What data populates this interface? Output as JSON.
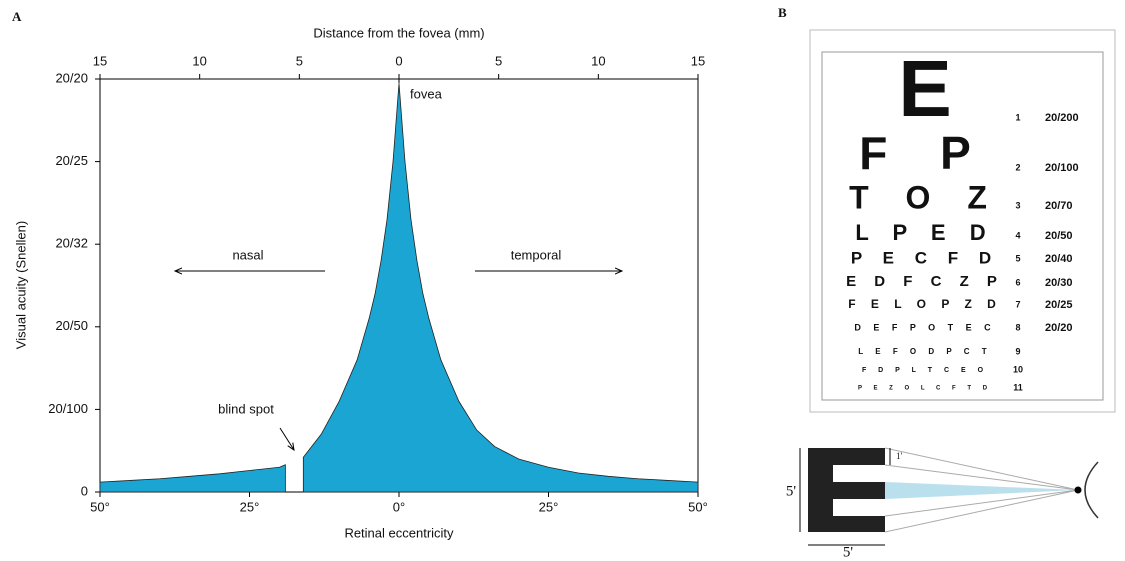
{
  "chart_data": {
    "type": "area",
    "panel_label": "A",
    "x_label": "Retinal eccentricity",
    "x2_label": "Distance from the fovea (mm)",
    "y_label": "Visual acuity (Snellen)",
    "color": "#1ba5d3",
    "x": [
      -50,
      -45,
      -40,
      -35,
      -30,
      -25,
      -20,
      -19,
      -17.5,
      -16,
      -13,
      -10,
      -7,
      -5,
      -4,
      -3,
      -2,
      -1,
      0,
      1,
      2,
      3,
      4,
      5,
      7,
      10,
      13,
      16,
      20,
      25,
      30,
      35,
      40,
      45,
      50
    ],
    "values": [
      0.12,
      0.14,
      0.16,
      0.19,
      0.22,
      0.26,
      0.3,
      0.33,
      null,
      0.42,
      0.7,
      1.1,
      1.6,
      2.1,
      2.4,
      2.8,
      3.3,
      4.0,
      4.95,
      4.0,
      3.3,
      2.8,
      2.4,
      2.1,
      1.6,
      1.1,
      0.75,
      0.55,
      0.4,
      0.3,
      0.23,
      0.19,
      0.16,
      0.14,
      0.12
    ],
    "xlim": [
      -50,
      50
    ],
    "xticks": [
      {
        "value": -50,
        "label": "50°"
      },
      {
        "value": -25,
        "label": "25°"
      },
      {
        "value": 0,
        "label": "0°"
      },
      {
        "value": 25,
        "label": "25°"
      },
      {
        "value": 50,
        "label": "50°"
      }
    ],
    "x2lim": [
      -15,
      15
    ],
    "x2ticks": [
      {
        "value": -15,
        "label": "15"
      },
      {
        "value": -10,
        "label": "10"
      },
      {
        "value": -5,
        "label": "5"
      },
      0,
      5,
      10,
      15
    ],
    "ylim": [
      0,
      5
    ],
    "yticks": [
      0,
      {
        "value": 1,
        "label": "20/100"
      },
      {
        "value": 2,
        "label": "20/50"
      },
      {
        "value": 3,
        "label": "20/32"
      },
      {
        "value": 4,
        "label": "20/25"
      },
      {
        "value": 5,
        "label": "20/20"
      }
    ],
    "annotations": [
      "fovea",
      "nasal",
      "temporal",
      "blind spot"
    ]
  },
  "snellen": {
    "panel_label": "B",
    "rows": [
      {
        "letters": "E",
        "number": "1",
        "acuity": "20/200"
      },
      {
        "letters": "F P",
        "number": "2",
        "acuity": "20/100"
      },
      {
        "letters": "T O Z",
        "number": "3",
        "acuity": "20/70"
      },
      {
        "letters": "L P E D",
        "number": "4",
        "acuity": "20/50"
      },
      {
        "letters": "P E C F D",
        "number": "5",
        "acuity": "20/40"
      },
      {
        "letters": "E D F C Z P",
        "number": "6",
        "acuity": "20/30"
      },
      {
        "letters": "F E L O P Z D",
        "number": "7",
        "acuity": "20/25"
      },
      {
        "letters": "D E F P O T E C",
        "number": "8",
        "acuity": "20/20"
      },
      {
        "letters": "L E F O D P C T",
        "number": "9"
      },
      {
        "letters": "F D P L T C E O",
        "number": "10"
      },
      {
        "letters": "P E Z O L C F T D",
        "number": "11"
      }
    ],
    "diagram": {
      "height_label": "5'",
      "width_label": "5'",
      "stroke_label": "1'"
    }
  }
}
